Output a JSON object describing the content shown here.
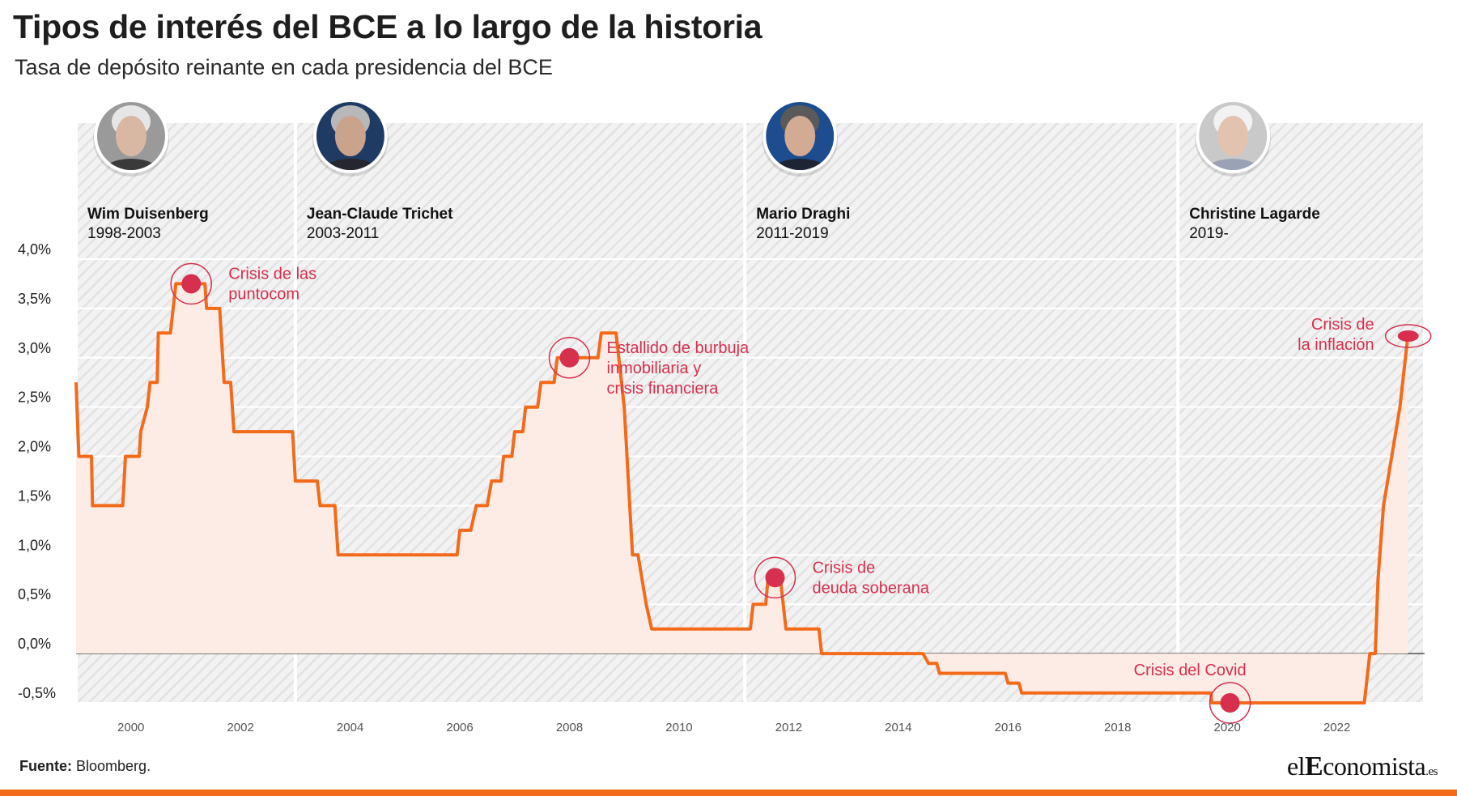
{
  "title": "Tipos de interés del BCE a lo largo de la historia",
  "subtitle": "Tasa de depósito reinante en cada presidencia del BCE",
  "source_label": "Fuente:",
  "source_text": "Bloomberg.",
  "logo": {
    "part1": "el",
    "part2": "E",
    "part3": "conomista",
    "part4": ".es"
  },
  "colors": {
    "line": "#f26a1a",
    "area": "#fdece6",
    "annotation": "#d6304e",
    "stripe": "#e9e9e9",
    "bar": "#f26a1a"
  },
  "chart_data": {
    "type": "area",
    "ylim": [
      -0.5,
      4.0
    ],
    "xlim": [
      1999.0,
      2023.6
    ],
    "yticks": [
      {
        "value": 4.0,
        "label": "4,0%"
      },
      {
        "value": 3.5,
        "label": "3,5%"
      },
      {
        "value": 3.0,
        "label": "3,0%"
      },
      {
        "value": 2.5,
        "label": "2,5%"
      },
      {
        "value": 2.0,
        "label": "2,0%"
      },
      {
        "value": 1.5,
        "label": "1,5%"
      },
      {
        "value": 1.0,
        "label": "1,0%"
      },
      {
        "value": 0.5,
        "label": "0,5%"
      },
      {
        "value": 0.0,
        "label": "0,0%"
      },
      {
        "value": -0.5,
        "label": "-0,5%"
      }
    ],
    "xticks": [
      2000,
      2002,
      2004,
      2006,
      2008,
      2010,
      2012,
      2014,
      2016,
      2018,
      2020,
      2022
    ],
    "series": [
      {
        "points": [
          [
            1999.0,
            2.75
          ],
          [
            1999.05,
            2.0
          ],
          [
            1999.28,
            2.0
          ],
          [
            1999.3,
            1.5
          ],
          [
            1999.85,
            1.5
          ],
          [
            1999.9,
            2.0
          ],
          [
            2000.15,
            2.0
          ],
          [
            2000.18,
            2.25
          ],
          [
            2000.3,
            2.5
          ],
          [
            2000.35,
            2.75
          ],
          [
            2000.48,
            2.75
          ],
          [
            2000.5,
            3.25
          ],
          [
            2000.72,
            3.25
          ],
          [
            2000.82,
            3.75
          ],
          [
            2001.35,
            3.75
          ],
          [
            2001.38,
            3.5
          ],
          [
            2001.62,
            3.5
          ],
          [
            2001.7,
            2.75
          ],
          [
            2001.82,
            2.75
          ],
          [
            2001.88,
            2.25
          ],
          [
            2002.95,
            2.25
          ],
          [
            2003.0,
            1.75
          ],
          [
            2003.4,
            1.75
          ],
          [
            2003.45,
            1.5
          ],
          [
            2003.72,
            1.5
          ],
          [
            2003.78,
            1.0
          ],
          [
            2005.95,
            1.0
          ],
          [
            2006.0,
            1.25
          ],
          [
            2006.2,
            1.25
          ],
          [
            2006.3,
            1.5
          ],
          [
            2006.5,
            1.5
          ],
          [
            2006.58,
            1.75
          ],
          [
            2006.75,
            1.75
          ],
          [
            2006.8,
            2.0
          ],
          [
            2006.95,
            2.0
          ],
          [
            2007.0,
            2.25
          ],
          [
            2007.15,
            2.25
          ],
          [
            2007.2,
            2.5
          ],
          [
            2007.42,
            2.5
          ],
          [
            2007.48,
            2.75
          ],
          [
            2007.72,
            2.75
          ],
          [
            2007.78,
            3.0
          ],
          [
            2008.52,
            3.0
          ],
          [
            2008.58,
            3.25
          ],
          [
            2008.85,
            3.25
          ],
          [
            2009.0,
            2.5
          ],
          [
            2009.15,
            1.0
          ],
          [
            2009.25,
            1.0
          ],
          [
            2009.4,
            0.5
          ],
          [
            2009.5,
            0.25
          ],
          [
            2011.3,
            0.25
          ],
          [
            2011.35,
            0.5
          ],
          [
            2011.58,
            0.5
          ],
          [
            2011.62,
            0.75
          ],
          [
            2011.85,
            0.75
          ],
          [
            2011.95,
            0.25
          ],
          [
            2012.55,
            0.25
          ],
          [
            2012.6,
            0.0
          ],
          [
            2014.45,
            0.0
          ],
          [
            2014.55,
            -0.1
          ],
          [
            2014.7,
            -0.1
          ],
          [
            2014.75,
            -0.2
          ],
          [
            2015.95,
            -0.2
          ],
          [
            2016.0,
            -0.3
          ],
          [
            2016.2,
            -0.3
          ],
          [
            2016.25,
            -0.4
          ],
          [
            2019.7,
            -0.4
          ],
          [
            2019.72,
            -0.5
          ],
          [
            2022.5,
            -0.5
          ],
          [
            2022.6,
            0.0
          ],
          [
            2022.7,
            0.0
          ],
          [
            2022.75,
            0.75
          ],
          [
            2022.85,
            1.5
          ],
          [
            2023.0,
            2.0
          ],
          [
            2023.15,
            2.5
          ],
          [
            2023.25,
            3.0
          ],
          [
            2023.3,
            3.25
          ]
        ]
      }
    ],
    "presidencies": [
      {
        "name": "Wim Duisenberg",
        "years": "1998-2003",
        "start": 1999.0,
        "end": 2003.0,
        "portrait": "duisenberg-portrait"
      },
      {
        "name": "Jean-Claude Trichet",
        "years": "2003-2011",
        "start": 2003.0,
        "end": 2011.2,
        "portrait": "trichet-portrait"
      },
      {
        "name": "Mario Draghi",
        "years": "2011-2019",
        "start": 2011.2,
        "end": 2019.1,
        "portrait": "draghi-portrait"
      },
      {
        "name": "Christine Lagarde",
        "years": "2019-",
        "start": 2019.1,
        "end": 2023.6,
        "portrait": "lagarde-portrait"
      }
    ],
    "annotations": [
      {
        "lines": [
          "Crisis de las",
          "puntocom"
        ],
        "x": 2001.1,
        "y": 3.75,
        "side": "right"
      },
      {
        "lines": [
          "Estallido de burbuja",
          "inmobiliaria y",
          "crisis financiera"
        ],
        "x": 2008.0,
        "y": 3.0,
        "side": "right"
      },
      {
        "lines": [
          "Crisis de",
          "deuda soberana"
        ],
        "x": 2011.75,
        "y": 0.77,
        "side": "right"
      },
      {
        "lines": [
          "Crisis del Covid"
        ],
        "x": 2020.05,
        "y": -0.5,
        "side": "above-left"
      },
      {
        "lines": [
          "Crisis de",
          "la inflación"
        ],
        "x": 2023.3,
        "y": 3.22,
        "side": "left"
      }
    ]
  }
}
